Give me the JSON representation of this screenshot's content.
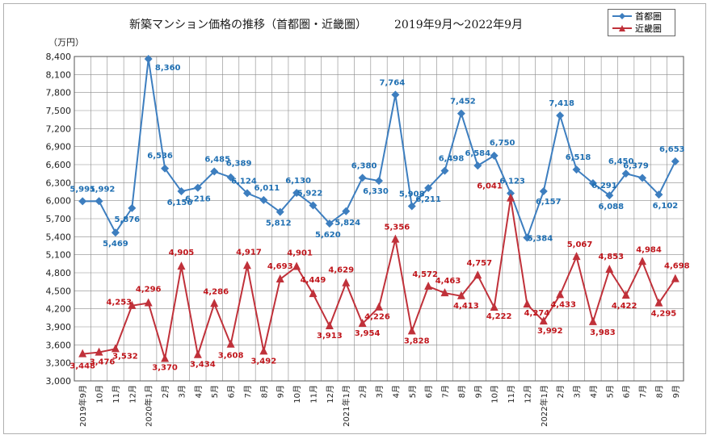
{
  "title": "新築マンション価格の推移（首都圏・近畿圏）",
  "period": "2019年9月～2022年9月",
  "unit": "（万円）",
  "colors": {
    "shutoken": "#3d7ebf",
    "kinki": "#c0313a"
  },
  "chart_data": {
    "type": "line",
    "categories": [
      "2019年9月",
      "10月",
      "11月",
      "12月",
      "2020年1月",
      "2月",
      "3月",
      "4月",
      "5月",
      "6月",
      "7月",
      "8月",
      "9月",
      "10月",
      "11月",
      "12月",
      "2021年1月",
      "2月",
      "3月",
      "4月",
      "5月",
      "6月",
      "7月",
      "8月",
      "9月",
      "10月",
      "11月",
      "12月",
      "2022年1月",
      "2月",
      "3月",
      "4月",
      "5月",
      "6月",
      "7月",
      "8月",
      "9月"
    ],
    "ylim": [
      3000,
      8400
    ],
    "yticks": [
      "3,000",
      "3,300",
      "3,600",
      "3,900",
      "4,200",
      "4,500",
      "4,800",
      "5,100",
      "5,400",
      "5,700",
      "6,000",
      "6,300",
      "6,600",
      "6,900",
      "7,200",
      "7,500",
      "7,800",
      "8,100",
      "8,400"
    ],
    "grid": true,
    "legend_position": "top-right",
    "series": [
      {
        "name": "首都圏",
        "marker": "diamond",
        "values": [
          5991,
          5992,
          5469,
          5876,
          8360,
          6536,
          6156,
          6216,
          6485,
          6389,
          6124,
          6011,
          5812,
          6130,
          5922,
          5620,
          5824,
          6380,
          6330,
          7764,
          5908,
          6211,
          6498,
          7452,
          6584,
          6750,
          6123,
          5384,
          6157,
          7418,
          6518,
          6291,
          6088,
          6450,
          6379,
          6102,
          6653
        ],
        "labels": [
          "5,991",
          "5,992",
          "5,469",
          "5,876",
          "8,360",
          "6,536",
          "6,156",
          "6,216",
          "6,485",
          "6,389",
          "6,124",
          "6,011",
          "5,812",
          "6,130",
          "5,922",
          "5,620",
          "5,824",
          "6,380",
          "6,330",
          "7,764",
          "5,908",
          "6,211",
          "6,498",
          "7,452",
          "6,584",
          "6,750",
          "6,123",
          "5,384",
          "6,157",
          "7,418",
          "6,518",
          "6,291",
          "6,088",
          "6,450",
          "6,379",
          "6,102",
          "6,653"
        ]
      },
      {
        "name": "近畿圏",
        "marker": "triangle",
        "values": [
          3448,
          3476,
          3532,
          4253,
          4296,
          3370,
          4905,
          3434,
          4286,
          3608,
          4917,
          3492,
          4693,
          4901,
          4449,
          3913,
          4629,
          3954,
          4226,
          5356,
          3828,
          4572,
          4463,
          4413,
          4757,
          4222,
          6041,
          4274,
          3992,
          4433,
          5067,
          3983,
          4853,
          4422,
          4984,
          4295,
          4698
        ],
        "labels": [
          "3,448",
          "3,476",
          "3,532",
          "4,253",
          "4,296",
          "3,370",
          "4,905",
          "3,434",
          "4,286",
          "3,608",
          "4,917",
          "3,492",
          "4,693",
          "4,901",
          "4,449",
          "3,913",
          "4,629",
          "3,954",
          "4,226",
          "5,356",
          "3,828",
          "4,572",
          "4,463",
          "4,413",
          "4,757",
          "4,222",
          "6,041",
          "4,274",
          "3,992",
          "4,433",
          "5,067",
          "3,983",
          "4,853",
          "4,422",
          "4,984",
          "4,295",
          "4,698"
        ]
      }
    ]
  }
}
